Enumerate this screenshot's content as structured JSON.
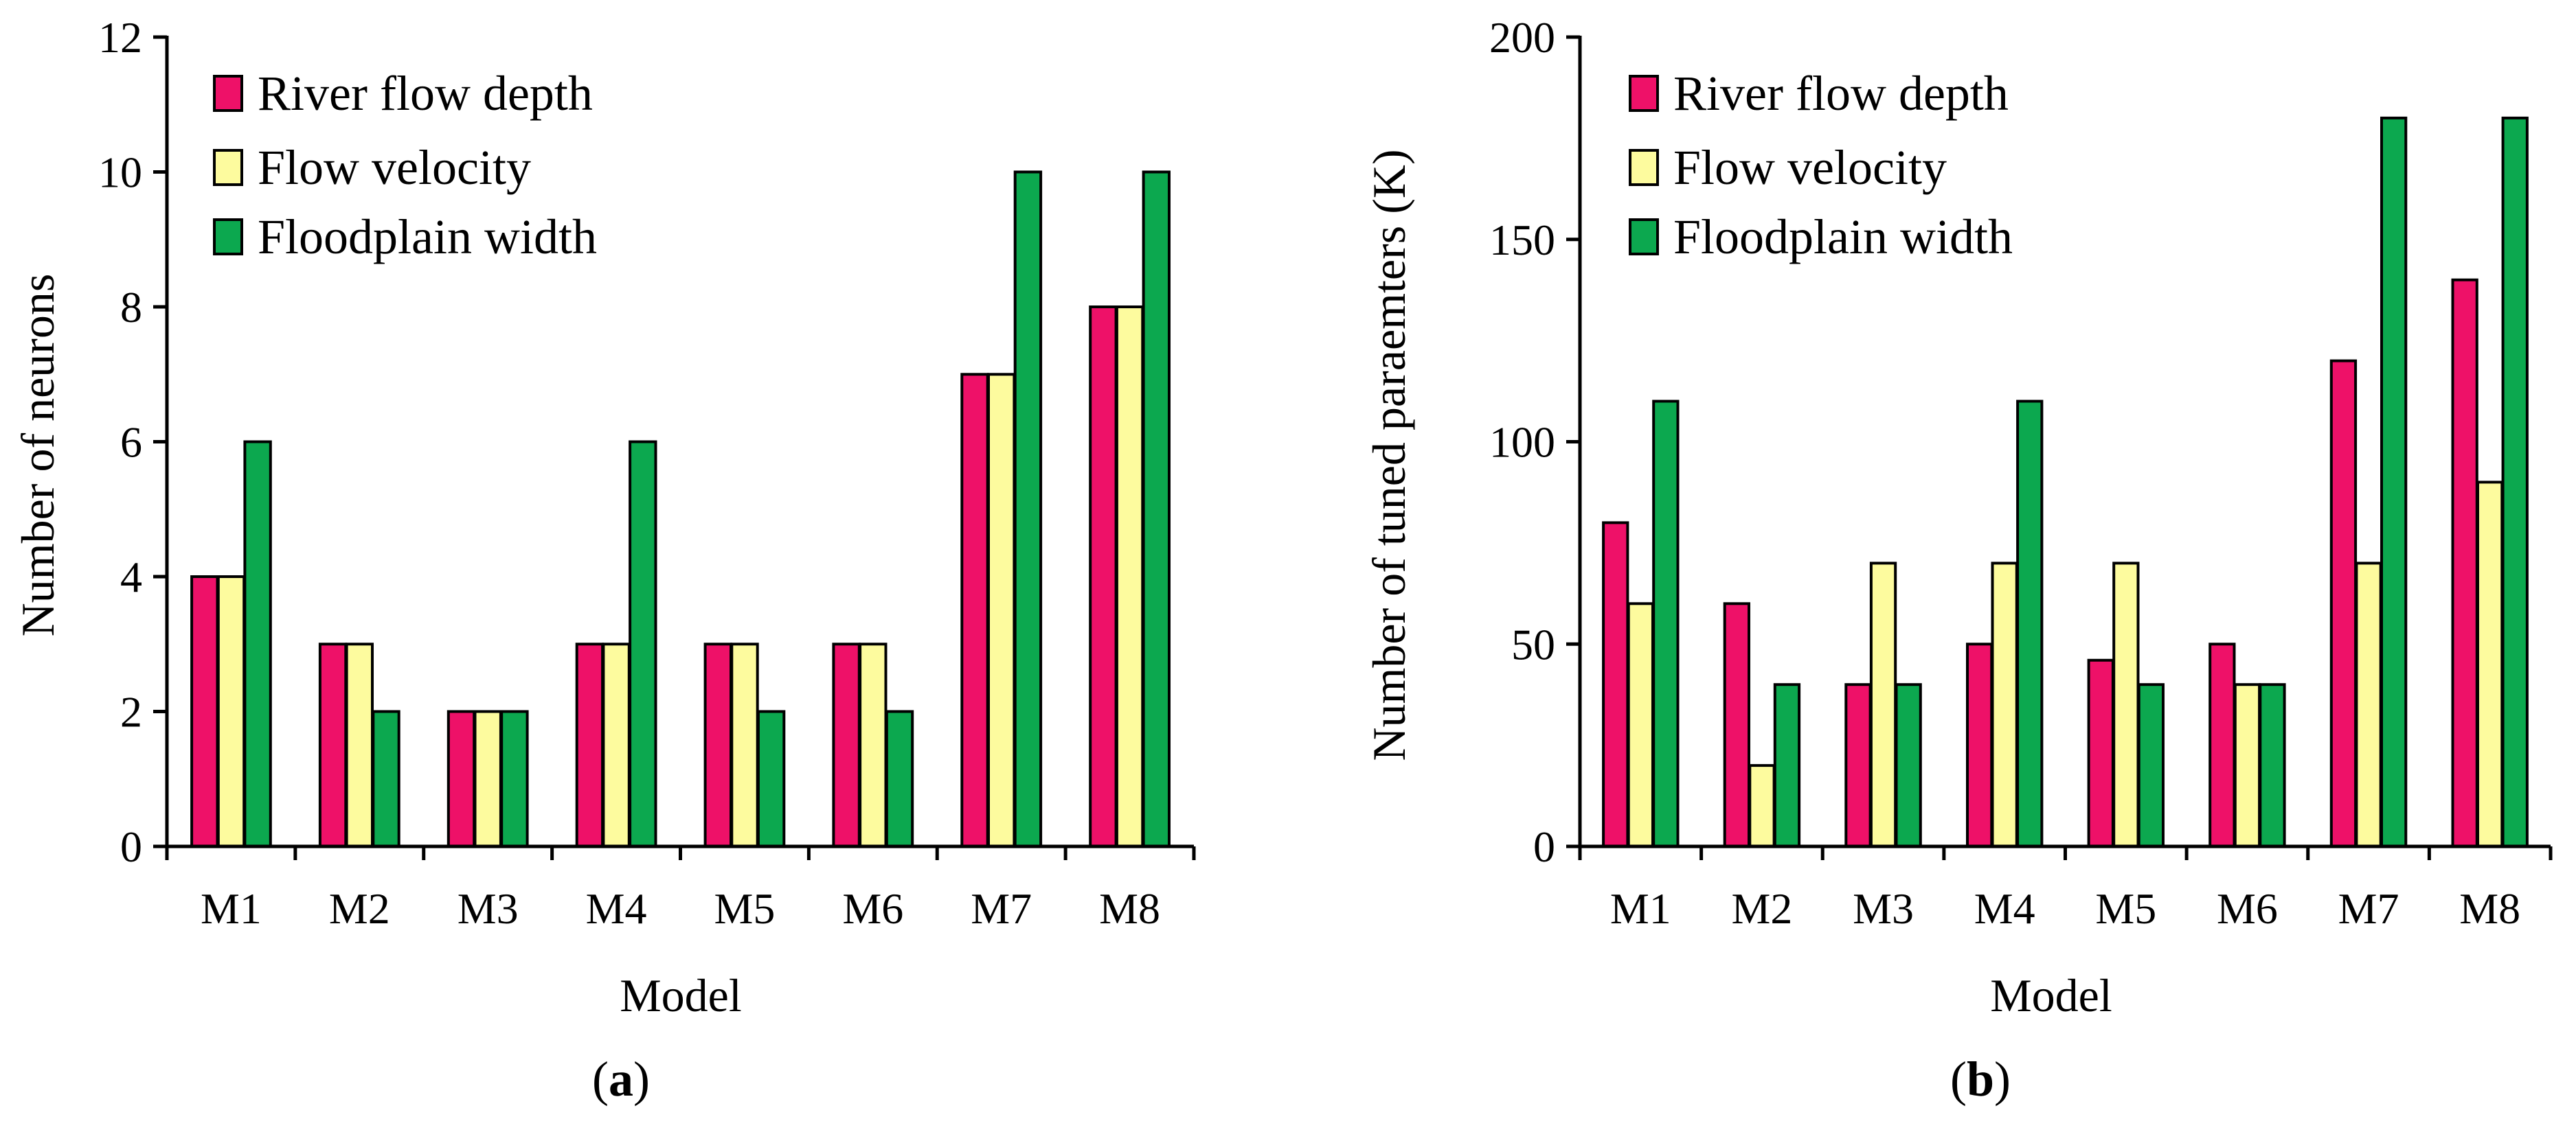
{
  "colors": {
    "river_flow_depth": "#ee1168",
    "flow_velocity": "#fdfb9e",
    "floodplain_width": "#0ca84f",
    "outline": "#000000"
  },
  "chart_data": [
    {
      "type": "bar",
      "caption_letter": "a",
      "caption_text": "(a)",
      "xlabel": "Model",
      "ylabel": "Number of neurons",
      "ylim": [
        0,
        12
      ],
      "yticks": [
        0,
        2,
        4,
        6,
        8,
        10,
        12
      ],
      "categories": [
        "M1",
        "M2",
        "M3",
        "M4",
        "M5",
        "M6",
        "M7",
        "M8"
      ],
      "legend_position": "top-left",
      "series": [
        {
          "name": "River flow depth",
          "color_key": "river_flow_depth",
          "values": [
            4,
            3,
            2,
            3,
            3,
            3,
            7,
            8
          ]
        },
        {
          "name": "Flow velocity",
          "color_key": "flow_velocity",
          "values": [
            4,
            3,
            2,
            3,
            3,
            3,
            7,
            8
          ]
        },
        {
          "name": "Floodplain width",
          "color_key": "floodplain_width",
          "values": [
            6,
            2,
            2,
            6,
            2,
            2,
            10,
            10
          ]
        }
      ]
    },
    {
      "type": "bar",
      "caption_letter": "b",
      "caption_text": "(b)",
      "xlabel": "Model",
      "ylabel": "Number of tuned paraemters (K)",
      "ylim": [
        0,
        200
      ],
      "yticks": [
        0,
        50,
        100,
        150,
        200
      ],
      "categories": [
        "M1",
        "M2",
        "M3",
        "M4",
        "M5",
        "M6",
        "M7",
        "M8"
      ],
      "legend_position": "top-left",
      "series": [
        {
          "name": "River flow depth",
          "color_key": "river_flow_depth",
          "values": [
            80,
            60,
            40,
            50,
            46,
            50,
            120,
            140
          ]
        },
        {
          "name": "Flow velocity",
          "color_key": "flow_velocity",
          "values": [
            60,
            20,
            70,
            70,
            70,
            40,
            70,
            90
          ]
        },
        {
          "name": "Floodplain width",
          "color_key": "floodplain_width",
          "values": [
            110,
            40,
            40,
            110,
            40,
            40,
            180,
            180
          ]
        }
      ]
    }
  ]
}
